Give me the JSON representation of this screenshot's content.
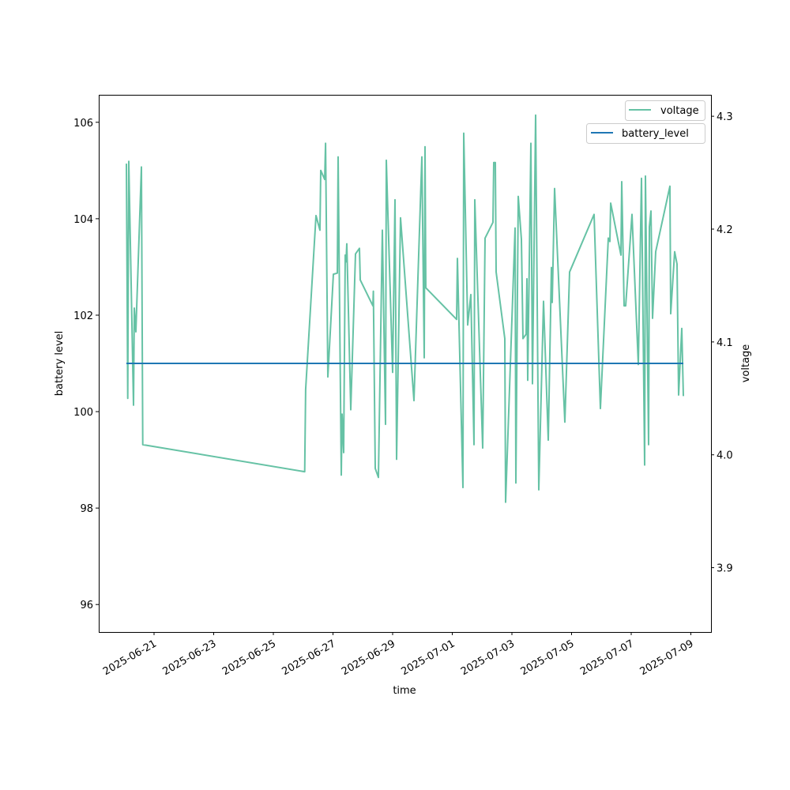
{
  "chart_data": {
    "type": "line",
    "title": "",
    "xlabel": "time",
    "ylabel_left": "battery level",
    "ylabel_right": "voltage",
    "xlim": [
      "2025-06-19T03:30",
      "2025-07-09T16:12"
    ],
    "ylim_left": [
      95.43,
      106.57
    ],
    "ylim_right": [
      3.843,
      4.319
    ],
    "x_ticks": [
      "2025-06-21",
      "2025-06-23",
      "2025-06-25",
      "2025-06-27",
      "2025-06-29",
      "2025-07-01",
      "2025-07-03",
      "2025-07-05",
      "2025-07-07",
      "2025-07-09"
    ],
    "y_ticks_left": [
      96,
      98,
      100,
      102,
      104,
      106
    ],
    "y_ticks_left_labels": [
      "96",
      "98",
      "100",
      "102",
      "104",
      "106"
    ],
    "y_ticks_right": [
      3.9,
      4.0,
      4.1,
      4.2,
      4.3
    ],
    "y_ticks_right_labels": [
      "3.9",
      "4.0",
      "4.1",
      "4.2",
      "4.3"
    ],
    "grid": false,
    "legend": [
      {
        "label": "battery_level",
        "color": "#1f77b4",
        "placement": "top-right"
      },
      {
        "label": "voltage",
        "color": "#66c2a5",
        "placement": "top-right"
      }
    ],
    "series": [
      {
        "name": "battery_level",
        "axis": "left",
        "color": "#1f77b4",
        "x": [
          "2025-06-20T01:45",
          "2025-07-08T17:57"
        ],
        "y": [
          101,
          101
        ]
      },
      {
        "name": "voltage",
        "axis": "right",
        "color": "#66c2a5",
        "x": [
          "2025-06-20T01:45",
          "2025-06-20T02:50",
          "2025-06-20T03:40",
          "2025-06-20T07:28",
          "2025-06-20T08:07",
          "2025-06-20T09:23",
          "2025-06-20T10:00",
          "2025-06-20T13:50",
          "2025-06-20T14:55",
          "2025-06-26T01:15",
          "2025-06-26T02:00",
          "2025-06-26T10:20",
          "2025-06-26T13:30",
          "2025-06-26T14:08",
          "2025-06-26T17:20",
          "2025-06-26T18:00",
          "2025-06-26T19:52",
          "2025-06-27T00:20",
          "2025-06-27T03:30",
          "2025-06-27T04:08",
          "2025-06-27T06:40",
          "2025-06-27T07:20",
          "2025-06-27T08:35",
          "2025-06-27T09:50",
          "2025-06-27T10:30",
          "2025-06-27T11:08",
          "2025-06-27T14:20",
          "2025-06-27T18:07",
          "2025-06-27T21:17",
          "2025-06-27T21:56",
          "2025-06-28T08:07",
          "2025-06-28T08:30",
          "2025-06-28T10:00",
          "2025-06-28T12:33",
          "2025-06-28T15:44",
          "2025-06-28T18:17",
          "2025-06-28T18:55",
          "2025-06-29T00:00",
          "2025-06-29T01:54",
          "2025-06-29T03:10",
          "2025-06-29T06:22",
          "2025-06-29T17:10",
          "2025-06-29T23:31",
          "2025-06-30T01:26",
          "2025-06-30T02:04",
          "2025-06-30T02:43",
          "2025-07-01T03:30",
          "2025-07-01T04:08",
          "2025-07-01T08:35",
          "2025-07-01T09:13",
          "2025-07-01T12:24",
          "2025-07-01T14:57",
          "2025-07-01T17:29",
          "2025-07-01T18:07",
          "2025-07-02T00:29",
          "2025-07-02T02:23",
          "2025-07-02T08:44",
          "2025-07-02T09:23",
          "2025-07-02T10:39",
          "2025-07-02T11:17",
          "2025-07-02T18:17",
          "2025-07-02T18:55",
          "2025-07-03T02:32",
          "2025-07-03T03:10",
          "2025-07-03T05:05",
          "2025-07-03T07:38",
          "2025-07-03T08:54",
          "2025-07-03T11:27",
          "2025-07-03T12:05",
          "2025-07-03T12:43",
          "2025-07-03T15:16",
          "2025-07-03T16:32",
          "2025-07-03T19:05",
          "2025-07-03T21:37",
          "2025-07-04T01:26",
          "2025-07-04T05:15",
          "2025-07-04T07:48",
          "2025-07-04T08:26",
          "2025-07-04T10:19",
          "2025-07-04T18:36",
          "2025-07-04T22:25",
          "2025-07-05T18:07",
          "2025-07-05T23:12",
          "2025-07-06T05:34",
          "2025-07-06T06:50",
          "2025-07-06T07:28",
          "2025-07-06T15:44",
          "2025-07-06T16:22",
          "2025-07-06T18:17",
          "2025-07-06T19:34",
          "2025-07-07T00:38",
          "2025-07-07T05:43",
          "2025-07-07T08:15",
          "2025-07-07T10:48",
          "2025-07-07T11:27",
          "2025-07-07T14:00",
          "2025-07-07T14:37",
          "2025-07-07T15:53",
          "2025-07-07T17:10",
          "2025-07-07T19:42",
          "2025-07-08T07:09",
          "2025-07-08T07:48",
          "2025-07-08T10:58",
          "2025-07-08T12:52",
          "2025-07-08T14:08",
          "2025-07-08T16:41",
          "2025-07-08T17:57"
        ],
        "y": [
          4.258,
          4.05,
          4.26,
          4.044,
          4.13,
          4.109,
          4.13,
          4.255,
          4.009,
          3.985,
          4.058,
          4.212,
          4.199,
          4.252,
          4.244,
          4.276,
          4.069,
          4.16,
          4.161,
          4.264,
          3.982,
          4.036,
          4.002,
          4.177,
          4.171,
          4.187,
          4.04,
          4.178,
          4.183,
          4.155,
          4.132,
          4.145,
          3.988,
          3.98,
          4.199,
          4.027,
          4.261,
          4.073,
          4.226,
          3.996,
          4.21,
          4.048,
          4.264,
          4.086,
          4.273,
          4.148,
          4.12,
          4.174,
          3.971,
          4.285,
          4.115,
          4.142,
          4.009,
          4.226,
          4.006,
          4.192,
          4.206,
          4.259,
          4.259,
          4.162,
          4.103,
          3.958,
          4.201,
          3.975,
          4.229,
          4.191,
          4.103,
          4.107,
          4.156,
          4.066,
          4.276,
          4.063,
          4.301,
          3.969,
          4.136,
          4.013,
          4.166,
          4.135,
          4.236,
          4.029,
          4.162,
          4.213,
          4.041,
          4.192,
          4.189,
          4.223,
          4.177,
          4.242,
          4.132,
          4.132,
          4.213,
          4.08,
          4.245,
          3.991,
          4.247,
          4.009,
          4.202,
          4.216,
          4.121,
          4.18,
          4.238,
          4.125,
          4.18,
          4.169,
          4.053,
          4.112,
          4.052
        ]
      }
    ]
  }
}
